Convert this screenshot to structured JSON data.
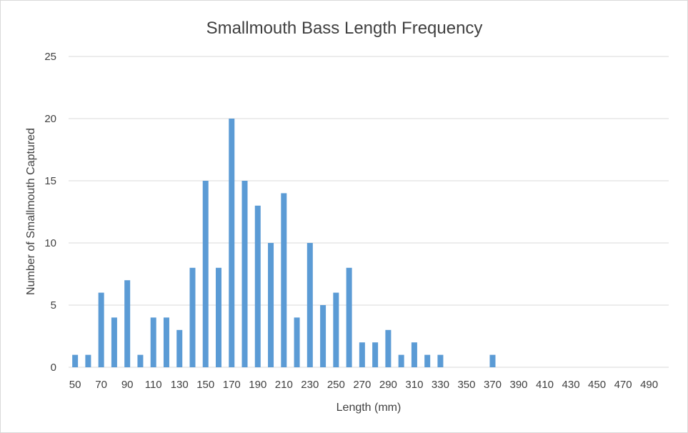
{
  "chart_data": {
    "type": "bar",
    "title": "Smallmouth Bass Length Frequency",
    "xlabel": "Length (mm)",
    "ylabel": "Number of Smallmouth Captured",
    "ylim": [
      0,
      25
    ],
    "yticks": [
      "0",
      "5",
      "10",
      "15",
      "20",
      "25"
    ],
    "grid": true,
    "legend": "none",
    "categories": [
      50,
      60,
      70,
      80,
      90,
      100,
      110,
      120,
      130,
      140,
      150,
      160,
      170,
      180,
      190,
      200,
      210,
      220,
      230,
      240,
      250,
      260,
      270,
      280,
      290,
      300,
      310,
      320,
      330,
      340,
      350,
      360,
      370,
      380,
      390,
      400,
      410,
      420,
      430,
      440,
      450,
      460,
      470,
      480,
      490,
      500
    ],
    "xtick_labels": [
      "50",
      "70",
      "90",
      "110",
      "130",
      "150",
      "170",
      "190",
      "210",
      "230",
      "250",
      "270",
      "290",
      "310",
      "330",
      "350",
      "370",
      "390",
      "410",
      "430",
      "450",
      "470",
      "490"
    ],
    "values": [
      1,
      1,
      6,
      4,
      7,
      1,
      4,
      4,
      3,
      8,
      15,
      8,
      20,
      15,
      13,
      10,
      14,
      4,
      10,
      5,
      6,
      8,
      2,
      2,
      3,
      1,
      2,
      1,
      1,
      0,
      0,
      0,
      1,
      0,
      0,
      0,
      0,
      0,
      0,
      0,
      0,
      0,
      0,
      0,
      0,
      0
    ],
    "colors": {
      "bar": "#5b9bd5",
      "grid": "#d9d9d9",
      "text": "#404040"
    }
  }
}
